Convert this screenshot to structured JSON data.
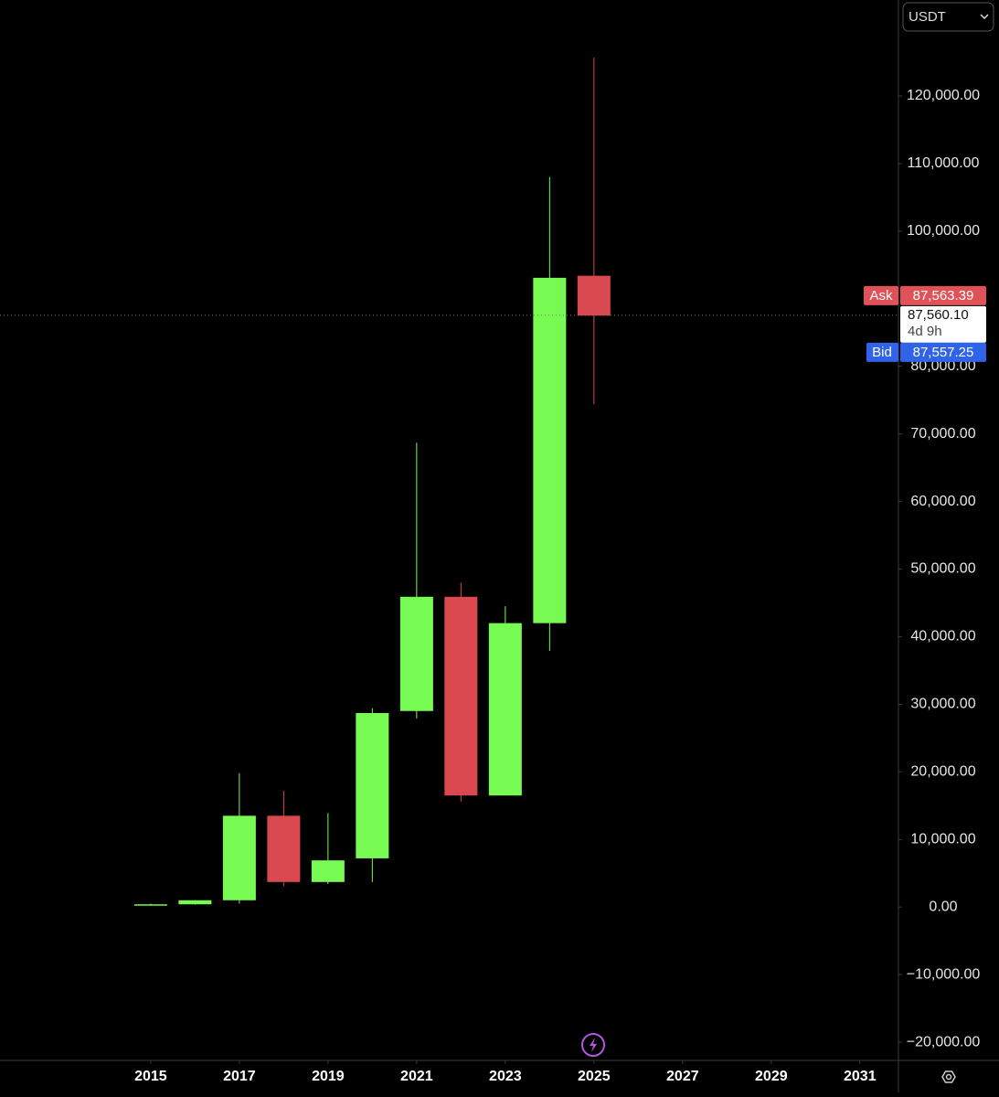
{
  "chart_data": {
    "type": "candlestick",
    "x": [
      2015,
      2016,
      2017,
      2018,
      2019,
      2020,
      2021,
      2022,
      2023,
      2024,
      2025
    ],
    "open": [
      300,
      400,
      1000,
      13500,
      3700,
      7200,
      29000,
      45900,
      16500,
      42000,
      93400
    ],
    "high": [
      500,
      1000,
      19800,
      17200,
      13900,
      29400,
      68700,
      48000,
      44500,
      108000,
      125700
    ],
    "low": [
      200,
      350,
      500,
      3100,
      3400,
      3700,
      27900,
      15600,
      16500,
      37900,
      74400
    ],
    "close": [
      400,
      1000,
      13500,
      3700,
      6900,
      28700,
      45900,
      16500,
      42000,
      93100,
      87500
    ],
    "up_color": "#77fa52",
    "down_color": "#d9494f",
    "xlim": [
      2011.6,
      2031.87
    ],
    "xticks": [
      2015,
      2017,
      2019,
      2021,
      2023,
      2025,
      2027,
      2029,
      2031
    ],
    "ylim": [
      -22700,
      134200
    ],
    "yticks": [
      {
        "value": -20000,
        "label": "−20,000.00"
      },
      {
        "value": -10000,
        "label": "−10,000.00"
      },
      {
        "value": 0,
        "label": "0.00"
      },
      {
        "value": 10000,
        "label": "10,000.00"
      },
      {
        "value": 20000,
        "label": "20,000.00"
      },
      {
        "value": 30000,
        "label": "30,000.00"
      },
      {
        "value": 40000,
        "label": "40,000.00"
      },
      {
        "value": 50000,
        "label": "50,000.00"
      },
      {
        "value": 60000,
        "label": "60,000.00"
      },
      {
        "value": 70000,
        "label": "70,000.00"
      },
      {
        "value": 80000,
        "label": "80,000.00"
      },
      {
        "value": 100000,
        "label": "100,000.00"
      },
      {
        "value": 110000,
        "label": "110,000.00"
      },
      {
        "value": 120000,
        "label": "120,000.00"
      }
    ],
    "currency": "USDT",
    "ask": {
      "name": "Ask",
      "price": {
        "value": 87563.39,
        "label": "87,563.39"
      }
    },
    "last": {
      "price": {
        "value": 87560.1,
        "label": "87,560.10"
      },
      "countdown": "4d 9h"
    },
    "bid": {
      "name": "Bid",
      "price": {
        "value": 87557.25,
        "label": "87,557.25"
      }
    }
  }
}
